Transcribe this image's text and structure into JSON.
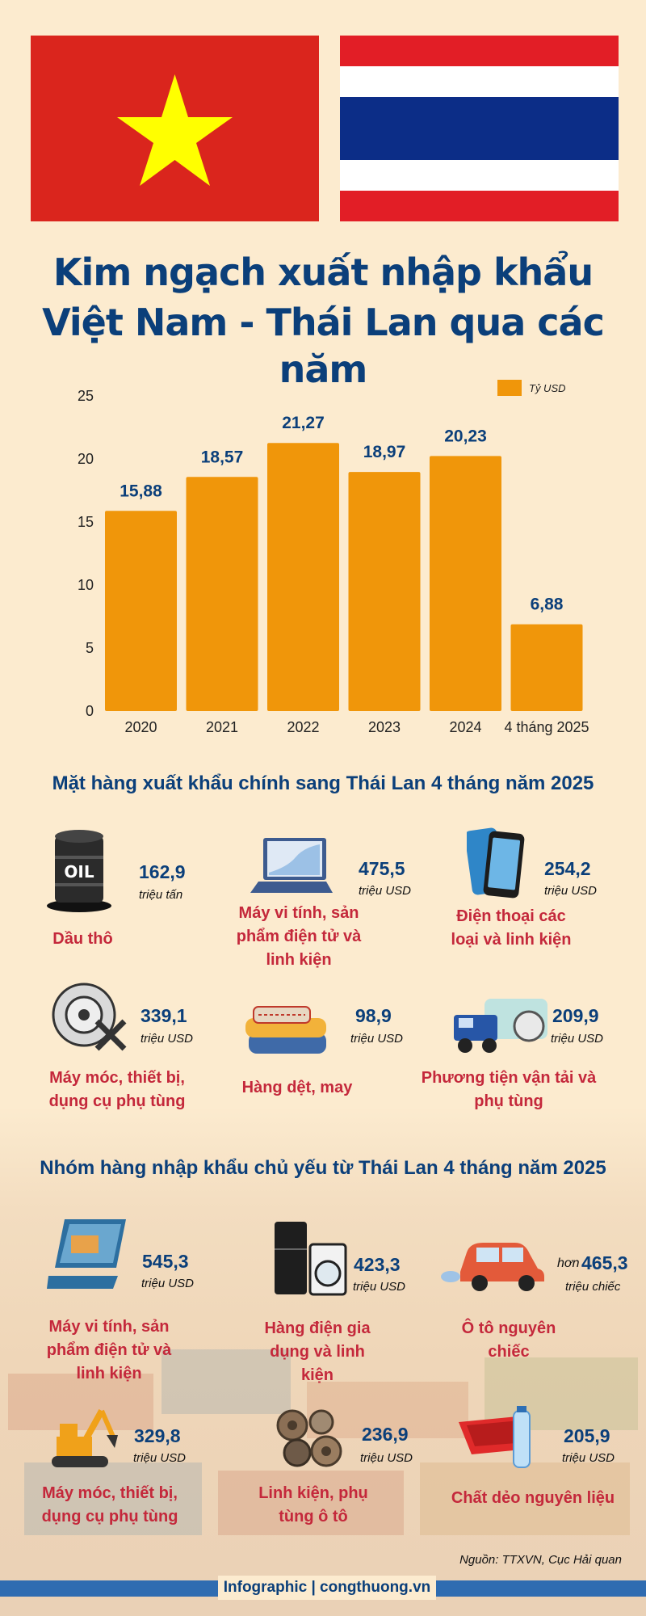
{
  "title": {
    "line1": "Kim ngạch xuất nhập khẩu",
    "line2": "Việt Nam - Thái Lan qua các năm"
  },
  "colors": {
    "bar": "#f0960a",
    "navy": "#0b3f7a",
    "red_label": "#c4283b",
    "vn_red": "#da251d",
    "vn_star": "#ffff00",
    "th_red": "#e21e26",
    "th_blue": "#0c2d87"
  },
  "flags": {
    "left": "vietnam-flag",
    "right": "thailand-flag"
  },
  "chart_data": {
    "type": "bar",
    "categories": [
      "2020",
      "2021",
      "2022",
      "2023",
      "2024",
      "4 tháng 2025"
    ],
    "series": [
      {
        "name": "Tỷ USD",
        "values": [
          15.88,
          18.57,
          21.27,
          18.97,
          20.23,
          6.88
        ]
      }
    ],
    "data_labels": [
      "15,88",
      "18,57",
      "21,27",
      "18,97",
      "20,23",
      "6,88"
    ],
    "yticks": [
      "0",
      "5",
      "10",
      "15",
      "20",
      "25"
    ],
    "ylim": [
      0,
      25
    ],
    "legend": "Tỷ USD",
    "legend_position": "top-right",
    "grid": false
  },
  "exports": {
    "title": "Mặt hàng xuất khẩu chính sang Thái Lan 4 tháng năm 2025",
    "items": [
      {
        "icon": "oil-barrel-icon",
        "value": "162,9",
        "unit": "triệu tấn",
        "label": "Dầu thô"
      },
      {
        "icon": "laptop-icon",
        "value": "475,5",
        "unit": "triệu USD",
        "label": "Máy vi tính, sản phẩm điện tử và linh kiện"
      },
      {
        "icon": "smartphone-icon",
        "value": "254,2",
        "unit": "triệu USD",
        "label": "Điện thoại các loại và linh kiện"
      },
      {
        "icon": "machine-parts-icon",
        "value": "339,1",
        "unit": "triệu USD",
        "label": "Máy móc, thiết bị, dụng cụ phụ tùng"
      },
      {
        "icon": "textile-icon",
        "value": "98,9",
        "unit": "triệu USD",
        "label": "Hàng dệt, may"
      },
      {
        "icon": "truck-icon",
        "value": "209,9",
        "unit": "triệu USD",
        "label": "Phương tiện vận tải và phụ tùng"
      }
    ]
  },
  "imports": {
    "title": "Nhóm hàng nhập khẩu chủ yếu từ Thái Lan 4 tháng năm 2025",
    "items": [
      {
        "icon": "laptop-icon",
        "prefix": "",
        "value": "545,3",
        "unit": "triệu USD",
        "label": "Máy vi tính, sản phẩm điện tử và linh kiện"
      },
      {
        "icon": "home-appliances-icon",
        "prefix": "",
        "value": "423,3",
        "unit": "triệu USD",
        "label": "Hàng điện gia dụng và linh kiện"
      },
      {
        "icon": "car-icon",
        "prefix": "hơn",
        "value": "465,3",
        "unit": "triệu chiếc",
        "label": "Ô tô nguyên chiếc"
      },
      {
        "icon": "excavator-icon",
        "prefix": "",
        "value": "329,8",
        "unit": "triệu USD",
        "label": "Máy móc, thiết bị, dụng cụ phụ tùng"
      },
      {
        "icon": "auto-parts-icon",
        "prefix": "",
        "value": "236,9",
        "unit": "triệu USD",
        "label": "Linh kiện, phụ tùng ô tô"
      },
      {
        "icon": "plastic-icon",
        "prefix": "",
        "value": "205,9",
        "unit": "triệu USD",
        "label": "Chất dẻo nguyên liệu"
      }
    ]
  },
  "source": "Nguồn: TTXVN, Cục Hải quan",
  "footer": "Infographic | congthuong.vn"
}
